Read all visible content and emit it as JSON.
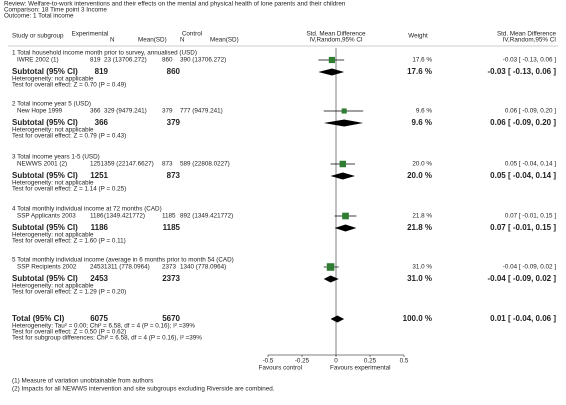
{
  "header": {
    "review": "Review:  Welfare-to-work interventions and their effects on the mental and physical health of lone parents and their children",
    "comparison": "Comparison:  18 Time point 3 Income",
    "outcome": "Outcome:  1 Total income"
  },
  "columns": {
    "study": "Study or subgroup",
    "experimental": "Experimental",
    "control": "Control",
    "n": "N",
    "mean": "Mean(SD)",
    "smd": "Std. Mean Difference",
    "method": "IV,Random,95% CI",
    "weight": "Weight"
  },
  "groups": [
    {
      "title": "1 Total household income month prior to survey, annualised (USD)",
      "study": {
        "name": "IWRE 2002 (1)",
        "n_exp": "819",
        "mean_exp": "23 (13706.272)",
        "n_ctrl": "860",
        "mean_ctrl": "390 (13706.272)",
        "weight": {
          "value": 17.6,
          "label": "17.6 %"
        },
        "est": -0.03,
        "lo": -0.13,
        "hi": 0.06,
        "ci_label": "-0.03 [ -0.13, 0.06 ]"
      },
      "subtotal": {
        "label": "Subtotal (95% CI)",
        "n_exp": "819",
        "n_ctrl": "860",
        "weight": {
          "value": 17.6,
          "label": "17.6 %"
        },
        "est": -0.03,
        "lo": -0.13,
        "hi": 0.06,
        "ci_label": "-0.03 [ -0.13, 0.06 ]"
      },
      "heterogeneity": "Heterogeneity: not applicable",
      "overall": "Test for overall effect: Z = 0.70 (P = 0.49)"
    },
    {
      "title": "2 Total income year 5 (USD)",
      "study": {
        "name": "New Hope 1999",
        "n_exp": "366",
        "mean_exp": "329 (9479.241)",
        "n_ctrl": "379",
        "mean_ctrl": "777 (9479.241)",
        "weight": {
          "value": 9.6,
          "label": "9.6 %"
        },
        "est": 0.06,
        "lo": -0.09,
        "hi": 0.2,
        "ci_label": "0.06 [ -0.09, 0.20 ]"
      },
      "subtotal": {
        "label": "Subtotal (95% CI)",
        "n_exp": "366",
        "n_ctrl": "379",
        "weight": {
          "value": 9.6,
          "label": "9.6 %"
        },
        "est": 0.06,
        "lo": -0.09,
        "hi": 0.2,
        "ci_label": "0.06 [ -0.09, 0.20 ]"
      },
      "heterogeneity": "Heterogeneity: not applicable",
      "overall": "Test for overall effect: Z = 0.79 (P = 0.43)"
    },
    {
      "title": "3 Total income years 1-5 (USD)",
      "study": {
        "name": "NEWWS 2001 (2)",
        "n_exp": "1251",
        "mean_exp": "359 (22147.6627)",
        "n_ctrl": "873",
        "mean_ctrl": "589 (22808.0227)",
        "weight": {
          "value": 20.0,
          "label": "20.0 %"
        },
        "est": 0.05,
        "lo": -0.04,
        "hi": 0.14,
        "ci_label": "0.05 [ -0.04, 0.14 ]"
      },
      "subtotal": {
        "label": "Subtotal (95% CI)",
        "n_exp": "1251",
        "n_ctrl": "873",
        "weight": {
          "value": 20.0,
          "label": "20.0 %"
        },
        "est": 0.05,
        "lo": -0.04,
        "hi": 0.14,
        "ci_label": "0.05 [ -0.04, 0.14 ]"
      },
      "heterogeneity": "Heterogeneity: not applicable",
      "overall": "Test for overall effect: Z = 1.14 (P = 0.25)"
    },
    {
      "title": "4 Total monthly individual income at 72 months (CAD)",
      "study": {
        "name": "SSP Applicants 2003",
        "n_exp": "1186",
        "mean_exp": "(1349.421772)",
        "n_ctrl": "1185",
        "mean_ctrl": "892 (1349.421772)",
        "weight": {
          "value": 21.8,
          "label": "21.8 %"
        },
        "est": 0.07,
        "lo": -0.01,
        "hi": 0.15,
        "ci_label": "0.07 [ -0.01, 0.15 ]"
      },
      "subtotal": {
        "label": "Subtotal (95% CI)",
        "n_exp": "1186",
        "n_ctrl": "1185",
        "weight": {
          "value": 21.8,
          "label": "21.8 %"
        },
        "est": 0.07,
        "lo": -0.01,
        "hi": 0.15,
        "ci_label": "0.07 [ -0.01, 0.15 ]"
      },
      "heterogeneity": "Heterogeneity: not applicable",
      "overall": "Test for overall effect: Z = 1.60 (P = 0.11)"
    },
    {
      "title": "5 Total monthly individual income (average in 6 months prior to month 54 (CAD)",
      "study": {
        "name": "SSP Recipients 2002",
        "n_exp": "2453",
        "mean_exp": "1311 (778.0964)",
        "n_ctrl": "2373",
        "mean_ctrl": "1340 (778.0964)",
        "weight": {
          "value": 31.0,
          "label": "31.0 %"
        },
        "est": -0.04,
        "lo": -0.09,
        "hi": 0.02,
        "ci_label": "-0.04 [ -0.09, 0.02 ]"
      },
      "subtotal": {
        "label": "Subtotal (95% CI)",
        "n_exp": "2453",
        "n_ctrl": "2373",
        "weight": {
          "value": 31.0,
          "label": "31.0 %"
        },
        "est": -0.04,
        "lo": -0.09,
        "hi": 0.02,
        "ci_label": "-0.04 [ -0.09, 0.02 ]"
      },
      "heterogeneity": "Heterogeneity: not applicable",
      "overall": "Test for overall effect: Z = 1.29 (P = 0.20)"
    }
  ],
  "total": {
    "label": "Total (95% CI)",
    "n_exp": "6075",
    "n_ctrl": "5670",
    "weight": {
      "value": 100.0,
      "label": "100.0 %"
    },
    "est": 0.01,
    "lo": -0.04,
    "hi": 0.06,
    "ci_label": "0.01 [ -0.04, 0.06 ]",
    "notes": [
      "Heterogeneity: Tau² = 0.00; Chi² = 6.58, df = 4 (P = 0.16); I² =39%",
      "Test for overall effect: Z = 0.50 (P = 0.62)",
      "Test for subgroup differences: Chi² = 6.58, df = 4 (P = 0.16), I² =39%"
    ]
  },
  "axis": {
    "xlim": [
      -0.5,
      0.5
    ],
    "xticks": [
      -0.5,
      -0.25,
      0,
      0.25,
      0.5
    ],
    "left": "Favours control",
    "right": "Favours experimental"
  },
  "footnotes": [
    "(1) Measure of variation unobtainable from authors",
    "(2) Impacts for all NEWWS intervention and site subgroups excluding Riverside are combined."
  ]
}
